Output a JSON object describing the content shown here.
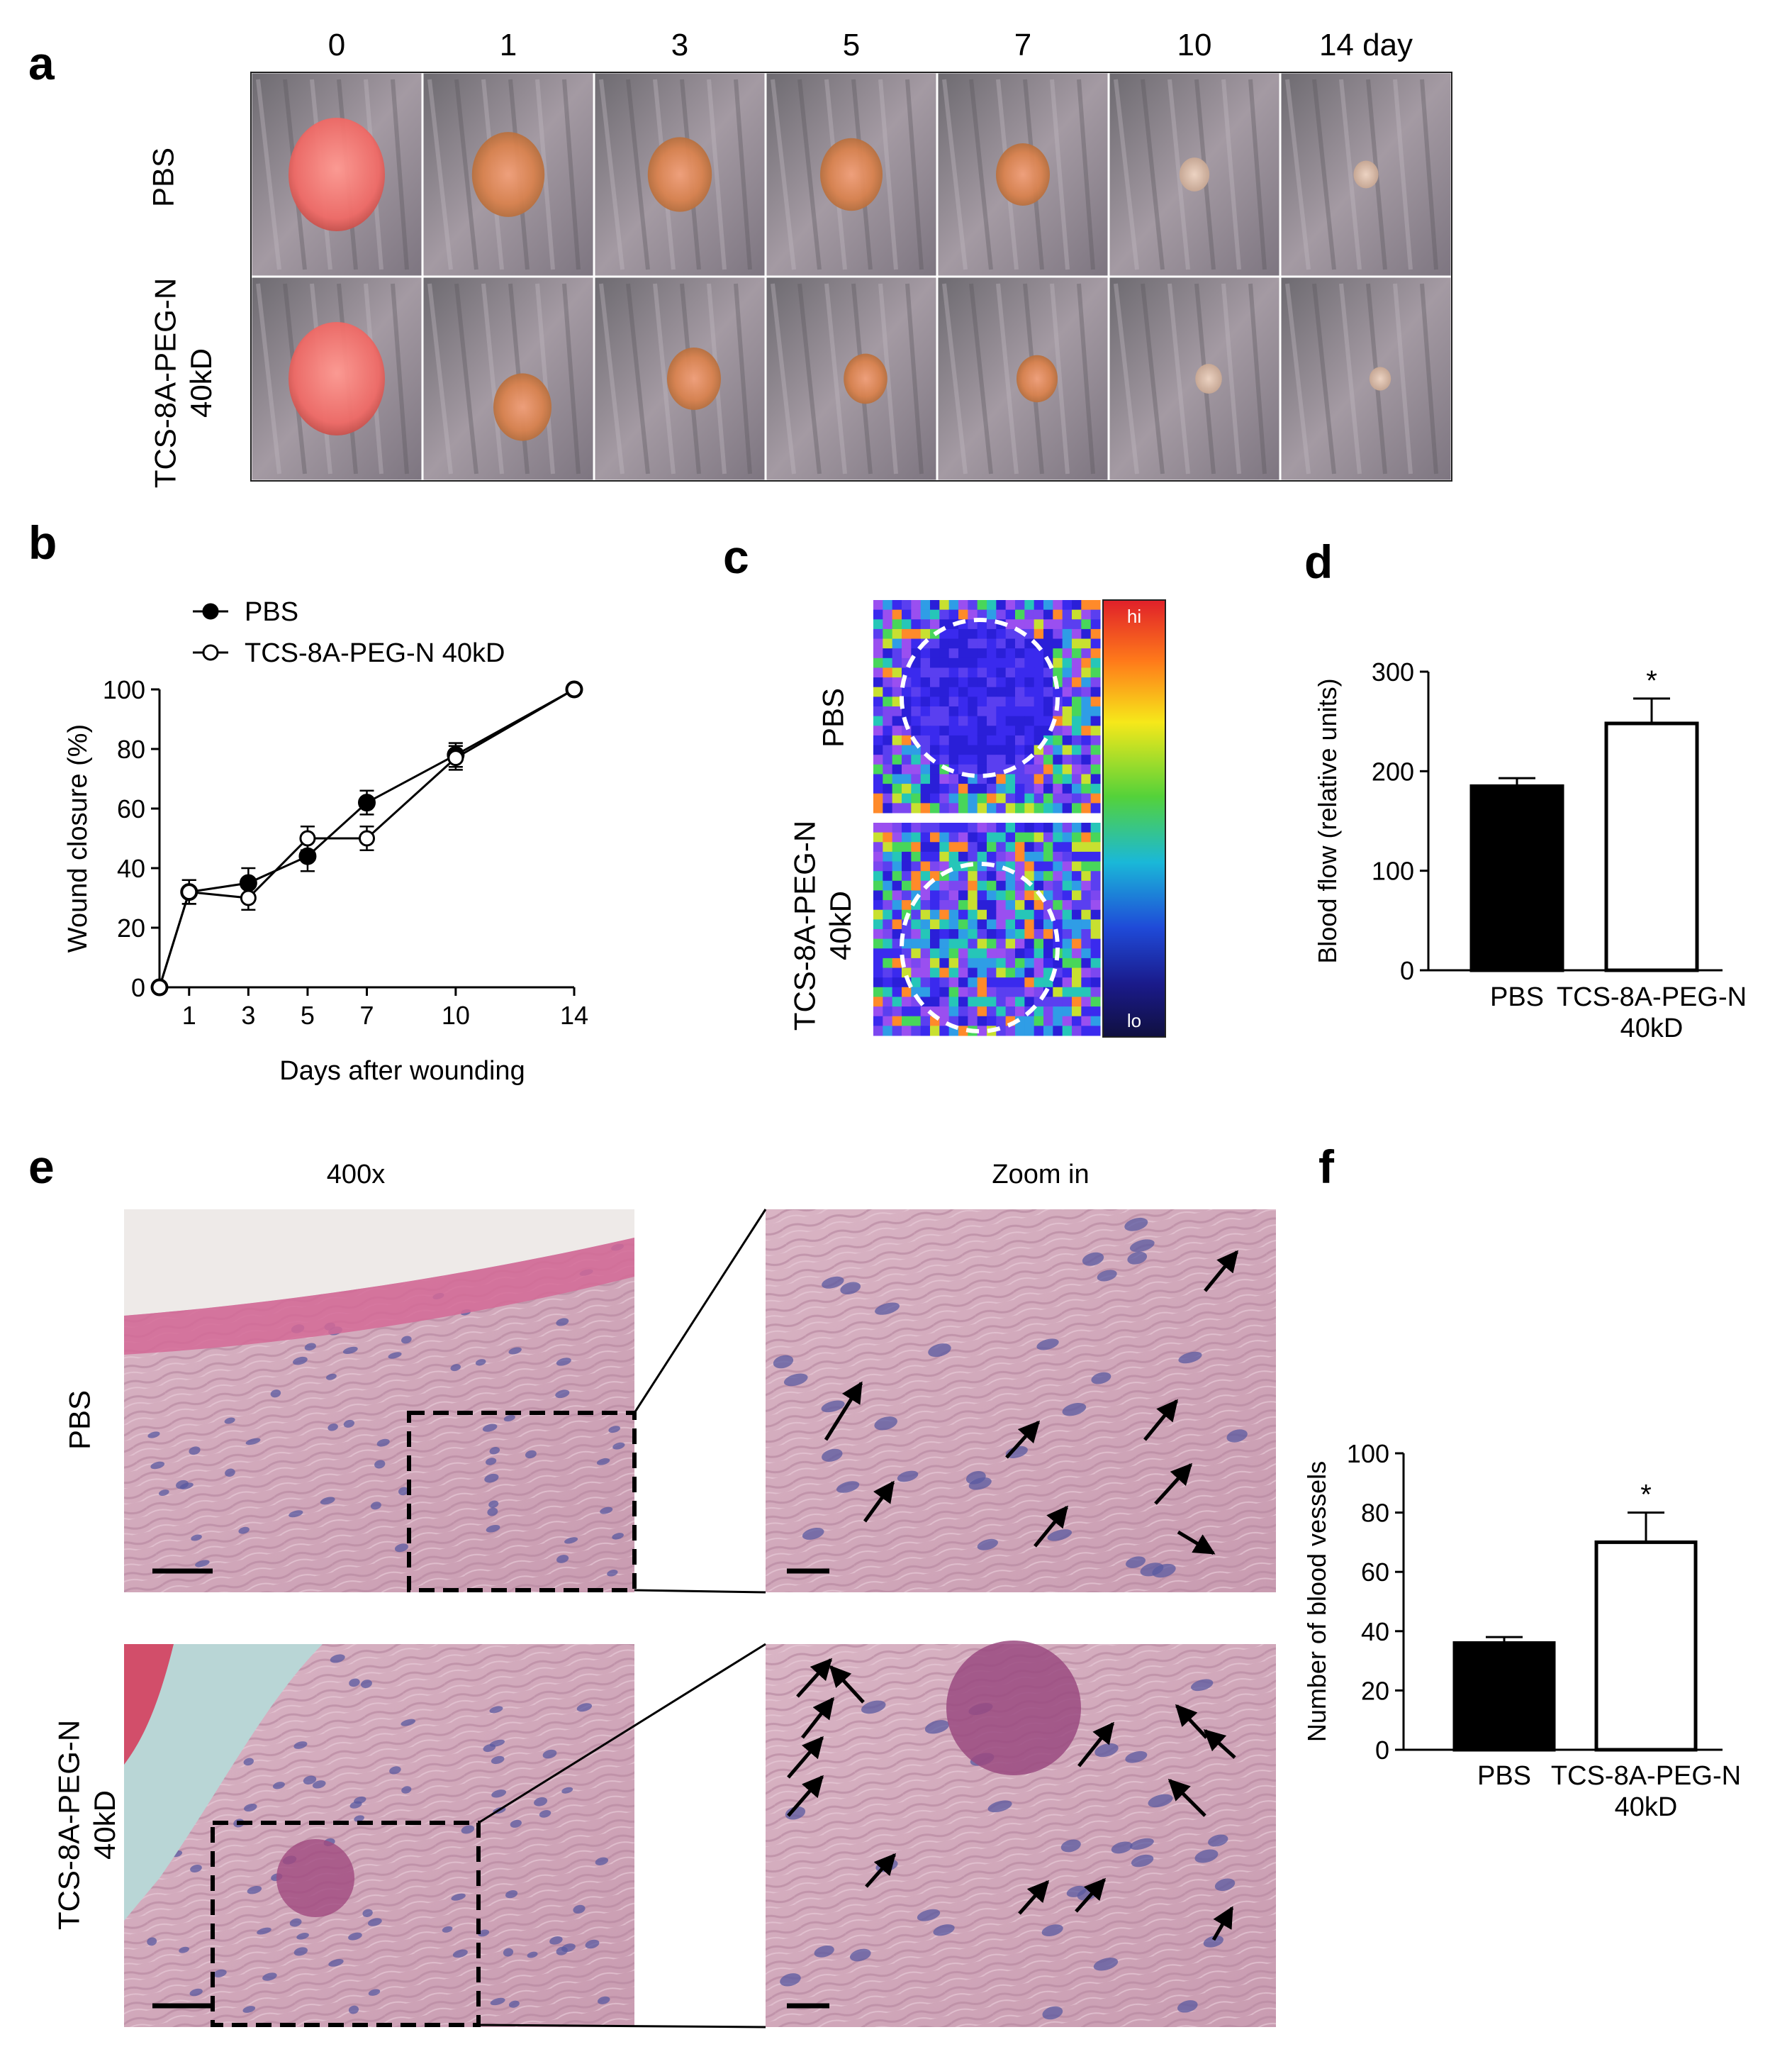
{
  "panels": {
    "a": {
      "letter": "a",
      "day_labels": [
        "0",
        "1",
        "3",
        "5",
        "7",
        "10",
        "14 day"
      ],
      "row_labels": [
        {
          "lines": [
            "PBS"
          ]
        },
        {
          "lines": [
            "TCS-8A-PEG-N",
            "40kD"
          ]
        }
      ]
    },
    "b": {
      "letter": "b"
    },
    "c": {
      "letter": "c",
      "row_labels": [
        {
          "lines": [
            "PBS"
          ]
        },
        {
          "lines": [
            "TCS-8A-PEG-N",
            "40kD"
          ]
        }
      ],
      "colorbar_hi": "hi",
      "colorbar_lo": "lo"
    },
    "d": {
      "letter": "d"
    },
    "e": {
      "letter": "e",
      "col_labels": [
        "400x",
        "Zoom in"
      ],
      "row_labels": [
        {
          "lines": [
            "PBS"
          ]
        },
        {
          "lines": [
            "TCS-8A-PEG-N",
            "40kD"
          ]
        }
      ]
    },
    "f": {
      "letter": "f"
    }
  },
  "chart_data": [
    {
      "id": "b",
      "type": "line",
      "xlabel": "Days after wounding",
      "ylabel": "Wound closure (%)",
      "x_ticks": [
        1,
        3,
        5,
        7,
        10,
        14
      ],
      "y_ticks": [
        0,
        20,
        40,
        60,
        80,
        100
      ],
      "xlim": [
        0,
        14
      ],
      "ylim": [
        0,
        100
      ],
      "legend_position": "top-left",
      "series": [
        {
          "name": "PBS",
          "marker": "filled-circle",
          "x": [
            0,
            1,
            3,
            5,
            7,
            10,
            14
          ],
          "y": [
            0,
            32,
            35,
            44,
            62,
            78,
            100
          ],
          "err": [
            0,
            4,
            5,
            5,
            4,
            4,
            0
          ]
        },
        {
          "name": "TCS-8A-PEG-N 40kD",
          "marker": "open-circle",
          "x": [
            0,
            1,
            3,
            5,
            7,
            10,
            14
          ],
          "y": [
            0,
            32,
            30,
            50,
            50,
            77,
            100
          ],
          "err": [
            0,
            4,
            4,
            4,
            4,
            4,
            0
          ]
        }
      ]
    },
    {
      "id": "d",
      "type": "bar",
      "categories": [
        [
          "PBS"
        ],
        [
          "TCS-8A-PEG-N",
          "40kD"
        ]
      ],
      "values": [
        185,
        248
      ],
      "errors": [
        8,
        25
      ],
      "fills": [
        "#000000",
        "#ffffff"
      ],
      "significance": [
        "",
        "*"
      ],
      "ylabel": "Blood flow (relative units)",
      "y_ticks": [
        0,
        100,
        200,
        300
      ],
      "ylim": [
        0,
        300
      ]
    },
    {
      "id": "f",
      "type": "bar",
      "categories": [
        [
          "PBS"
        ],
        [
          "TCS-8A-PEG-N",
          "40kD"
        ]
      ],
      "values": [
        36,
        70
      ],
      "errors": [
        2,
        10
      ],
      "fills": [
        "#000000",
        "#ffffff"
      ],
      "significance": [
        "",
        "*"
      ],
      "ylabel": "Number of blood vessels",
      "y_ticks": [
        0,
        20,
        40,
        60,
        80,
        100
      ],
      "ylim": [
        0,
        100
      ]
    }
  ]
}
